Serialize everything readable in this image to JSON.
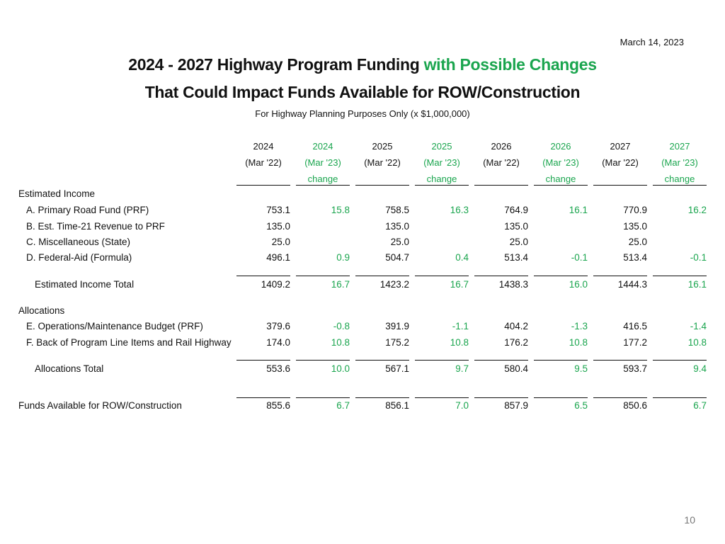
{
  "header": {
    "date": "March 14, 2023",
    "title_line1_main": "2024 - 2027 Highway Program Funding",
    "title_line1_accent": "with Possible Changes",
    "title_line2": "That Could Impact Funds Available for ROW/Construction",
    "subtitle": "For Highway Planning Purposes Only (x $1,000,000)"
  },
  "colors": {
    "accent": "#1aa54e",
    "text": "#111111"
  },
  "columns": [
    {
      "year": "2024",
      "basis": "(Mar '22)",
      "note": "",
      "kind": "base"
    },
    {
      "year": "2024",
      "basis": "(Mar '23)",
      "note": "change",
      "kind": "change"
    },
    {
      "year": "2025",
      "basis": "(Mar '22)",
      "note": "",
      "kind": "base"
    },
    {
      "year": "2025",
      "basis": "(Mar '23)",
      "note": "change",
      "kind": "change"
    },
    {
      "year": "2026",
      "basis": "(Mar '22)",
      "note": "",
      "kind": "base"
    },
    {
      "year": "2026",
      "basis": "(Mar '23)",
      "note": "change",
      "kind": "change"
    },
    {
      "year": "2027",
      "basis": "(Mar '22)",
      "note": "",
      "kind": "base"
    },
    {
      "year": "2027",
      "basis": "(Mar '23)",
      "note": "change",
      "kind": "change"
    }
  ],
  "rows": [
    {
      "label": "Estimated Income",
      "values": []
    },
    {
      "label": "A. Primary Road Fund (PRF)",
      "values": [
        "753.1",
        "15.8",
        "758.5",
        "16.3",
        "764.9",
        "16.1",
        "770.9",
        "16.2"
      ]
    },
    {
      "label": "B. Est. Time-21 Revenue to PRF",
      "values": [
        "135.0",
        "",
        "135.0",
        "",
        "135.0",
        "",
        "135.0",
        ""
      ]
    },
    {
      "label": "C. Miscellaneous (State)",
      "values": [
        "25.0",
        "",
        "25.0",
        "",
        "25.0",
        "",
        "25.0",
        ""
      ]
    },
    {
      "label": "D. Federal-Aid (Formula)",
      "values": [
        "496.1",
        "0.9",
        "504.7",
        "0.4",
        "513.4",
        "-0.1",
        "513.4",
        "-0.1"
      ]
    },
    {
      "label": "Estimated Income Total",
      "values": [
        "1409.2",
        "16.7",
        "1423.2",
        "16.7",
        "1438.3",
        "16.0",
        "1444.3",
        "16.1"
      ]
    },
    {
      "label": "Allocations",
      "values": []
    },
    {
      "label": "E. Operations/Maintenance Budget (PRF)",
      "values": [
        "379.6",
        "-0.8",
        "391.9",
        "-1.1",
        "404.2",
        "-1.3",
        "416.5",
        "-1.4"
      ]
    },
    {
      "label": "F. Back of Program Line Items and Rail Highway",
      "values": [
        "174.0",
        "10.8",
        "175.2",
        "10.8",
        "176.2",
        "10.8",
        "177.2",
        "10.8"
      ]
    },
    {
      "label": "Allocations Total",
      "values": [
        "553.6",
        "10.0",
        "567.1",
        "9.7",
        "580.4",
        "9.5",
        "593.7",
        "9.4"
      ]
    },
    {
      "label": "Funds Available for ROW/Construction",
      "values": [
        "855.6",
        "6.7",
        "856.1",
        "7.0",
        "857.9",
        "6.5",
        "850.6",
        "6.7"
      ]
    }
  ],
  "page_number": "10"
}
